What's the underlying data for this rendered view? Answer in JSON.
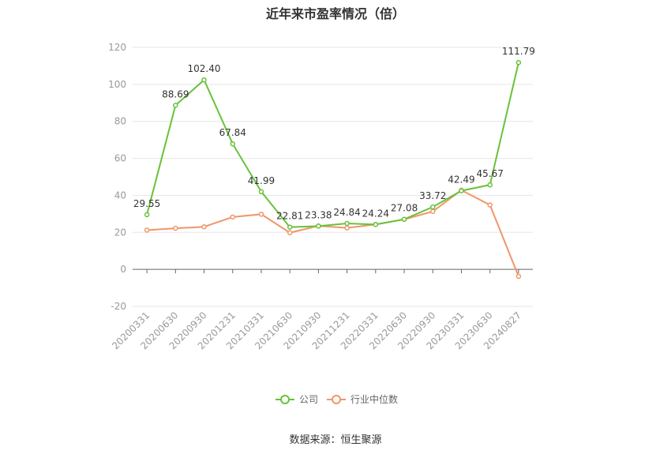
{
  "chart_data": {
    "type": "line",
    "title": "近年来市盈率情况（倍）",
    "source": "数据来源：恒生聚源",
    "categories": [
      "20200331",
      "20200630",
      "20200930",
      "20201231",
      "20210331",
      "20210630",
      "20210930",
      "20211231",
      "20220331",
      "20220630",
      "20220930",
      "20230331",
      "20230630",
      "20240827"
    ],
    "ylim": [
      -20,
      120
    ],
    "yticks": [
      -20,
      0,
      20,
      40,
      60,
      80,
      100,
      120
    ],
    "grid": true,
    "legend_position": "bottom",
    "series": [
      {
        "name": "公司",
        "color": "#67c23a",
        "values": [
          29.55,
          88.69,
          102.4,
          67.84,
          41.99,
          22.81,
          23.38,
          24.84,
          24.24,
          27.08,
          33.72,
          42.49,
          45.67,
          111.79
        ],
        "labels": [
          "29.55",
          "88.69",
          "102.40",
          "67.84",
          "41.99",
          "22.81",
          "23.38",
          "24.84",
          "24.24",
          "27.08",
          "33.72",
          "42.49",
          "45.67",
          "111.79"
        ]
      },
      {
        "name": "行业中位数",
        "color": "#f0966a",
        "values": [
          21.2,
          22.2,
          23.0,
          28.3,
          29.8,
          19.8,
          23.5,
          22.4,
          24.3,
          27.0,
          31.3,
          42.8,
          34.8,
          -3.8
        ]
      }
    ]
  }
}
